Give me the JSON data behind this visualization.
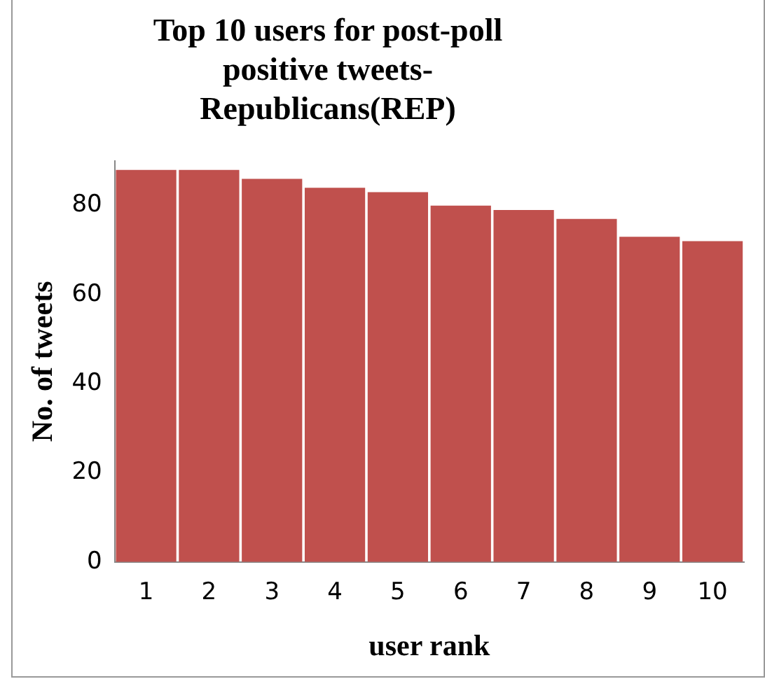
{
  "chart_data": {
    "type": "bar",
    "title": "Top 10 users for post-poll positive tweets-Republicans(REP)",
    "xlabel": "user rank",
    "ylabel": "No. of tweets",
    "categories": [
      "1",
      "2",
      "3",
      "4",
      "5",
      "6",
      "7",
      "8",
      "9",
      "10"
    ],
    "values": [
      88,
      88,
      86,
      84,
      83,
      80,
      79,
      77,
      73,
      72
    ],
    "color": "#c0504d",
    "ylim": [
      0,
      90
    ],
    "yticks": [
      0,
      20,
      40,
      60,
      80
    ],
    "grid": false,
    "legend": false
  }
}
